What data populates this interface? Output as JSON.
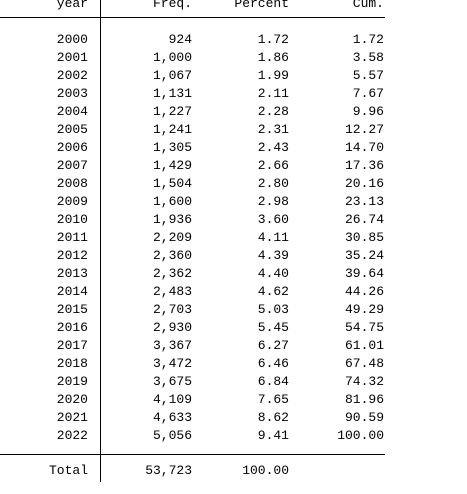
{
  "table": {
    "header": [
      "year",
      "Freq.",
      "Percent",
      "Cum."
    ],
    "rows": [
      [
        "2000",
        "924",
        "1.72",
        "1.72"
      ],
      [
        "2001",
        "1,000",
        "1.86",
        "3.58"
      ],
      [
        "2002",
        "1,067",
        "1.99",
        "5.57"
      ],
      [
        "2003",
        "1,131",
        "2.11",
        "7.67"
      ],
      [
        "2004",
        "1,227",
        "2.28",
        "9.96"
      ],
      [
        "2005",
        "1,241",
        "2.31",
        "12.27"
      ],
      [
        "2006",
        "1,305",
        "2.43",
        "14.70"
      ],
      [
        "2007",
        "1,429",
        "2.66",
        "17.36"
      ],
      [
        "2008",
        "1,504",
        "2.80",
        "20.16"
      ],
      [
        "2009",
        "1,600",
        "2.98",
        "23.13"
      ],
      [
        "2010",
        "1,936",
        "3.60",
        "26.74"
      ],
      [
        "2011",
        "2,209",
        "4.11",
        "30.85"
      ],
      [
        "2012",
        "2,360",
        "4.39",
        "35.24"
      ],
      [
        "2013",
        "2,362",
        "4.40",
        "39.64"
      ],
      [
        "2014",
        "2,483",
        "4.62",
        "44.26"
      ],
      [
        "2015",
        "2,703",
        "5.03",
        "49.29"
      ],
      [
        "2016",
        "2,930",
        "5.45",
        "54.75"
      ],
      [
        "2017",
        "3,367",
        "6.27",
        "61.01"
      ],
      [
        "2018",
        "3,472",
        "6.46",
        "67.48"
      ],
      [
        "2019",
        "3,675",
        "6.84",
        "74.32"
      ],
      [
        "2020",
        "4,109",
        "7.65",
        "81.96"
      ],
      [
        "2021",
        "4,633",
        "8.62",
        "90.59"
      ],
      [
        "2022",
        "5,056",
        "9.41",
        "100.00"
      ]
    ],
    "total": [
      "Total",
      "53,723",
      "100.00"
    ]
  }
}
